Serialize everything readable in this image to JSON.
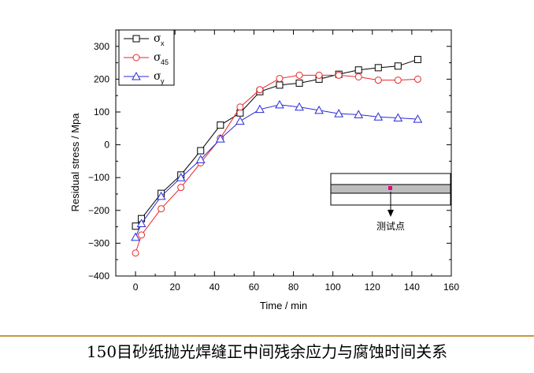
{
  "chart_data": {
    "type": "line",
    "title": "",
    "xlabel": "Time / min",
    "ylabel": "Residual stress / Mpa",
    "xlim": [
      -10,
      160
    ],
    "ylim": [
      -400,
      350
    ],
    "xticks": [
      0,
      20,
      40,
      60,
      80,
      100,
      120,
      140,
      160
    ],
    "yticks": [
      -400,
      -300,
      -200,
      -100,
      0,
      100,
      200,
      300
    ],
    "grid": false,
    "legend_position": "top-left",
    "series": [
      {
        "name": "σ",
        "subscript": "x",
        "marker": "square",
        "color": "#000000",
        "x": [
          0,
          3,
          13,
          23,
          33,
          43,
          53,
          63,
          73,
          83,
          93,
          103,
          113,
          123,
          133,
          143
        ],
        "y": [
          -248,
          -225,
          -148,
          -92,
          -18,
          60,
          97,
          162,
          182,
          188,
          200,
          215,
          228,
          235,
          240,
          260
        ]
      },
      {
        "name": "σ",
        "subscript": "45",
        "marker": "circle",
        "color": "#e8262a",
        "x": [
          0,
          3,
          13,
          23,
          33,
          43,
          53,
          63,
          73,
          83,
          93,
          103,
          113,
          123,
          133,
          143
        ],
        "y": [
          -330,
          -275,
          -195,
          -130,
          -55,
          20,
          115,
          168,
          202,
          212,
          212,
          212,
          207,
          197,
          197,
          200
        ]
      },
      {
        "name": "σ",
        "subscript": "y",
        "marker": "triangle",
        "color": "#2a2ad8",
        "x": [
          0,
          3,
          13,
          23,
          33,
          43,
          53,
          63,
          73,
          83,
          93,
          103,
          113,
          123,
          133,
          143
        ],
        "y": [
          -282,
          -240,
          -157,
          -100,
          -45,
          18,
          72,
          108,
          122,
          115,
          105,
          95,
          92,
          85,
          82,
          78
        ]
      }
    ],
    "annotation": "测试点"
  },
  "caption": "150目砂纸抛光焊缝正中间残余应力与腐蚀时间关系",
  "colors": {
    "divider": "#c79a3a",
    "inset_band": "#bdbdbd",
    "inset_point": "#e6007e"
  }
}
